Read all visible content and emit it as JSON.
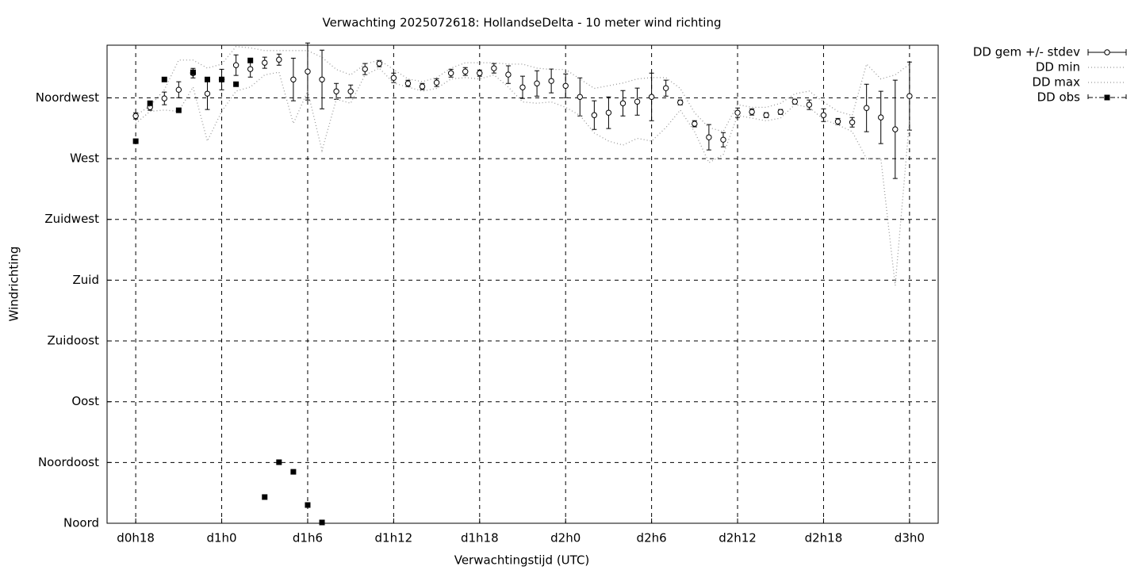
{
  "chart_data": {
    "type": "errorbar",
    "title": "Verwachting 2025072618: HollandseDelta - 10 meter wind richting",
    "x_label": "Verwachtingstijd (UTC)",
    "y_label": "Windrichting",
    "xlim": [
      16,
      74
    ],
    "xticks": [
      {
        "value": 18,
        "label": "d0h18"
      },
      {
        "value": 24,
        "label": "d1h0"
      },
      {
        "value": 30,
        "label": "d1h6"
      },
      {
        "value": 36,
        "label": "d1h12"
      },
      {
        "value": 42,
        "label": "d1h18"
      },
      {
        "value": 48,
        "label": "d2h0"
      },
      {
        "value": 54,
        "label": "d2h6"
      },
      {
        "value": 60,
        "label": "d2h12"
      },
      {
        "value": 66,
        "label": "d2h18"
      },
      {
        "value": 72,
        "label": "d3h0"
      }
    ],
    "ylim": [
      0,
      354
    ],
    "yticks": [
      {
        "value": 0,
        "label": "Noord"
      },
      {
        "value": 45,
        "label": "Noordoost"
      },
      {
        "value": 90,
        "label": "Oost"
      },
      {
        "value": 135,
        "label": "Zuidoost"
      },
      {
        "value": 180,
        "label": "Zuid"
      },
      {
        "value": 225,
        "label": "Zuidwest"
      },
      {
        "value": 270,
        "label": "West"
      },
      {
        "value": 315,
        "label": "Noordwest"
      }
    ],
    "grid": true,
    "legend": "outside-top-right",
    "x": [
      18,
      19,
      20,
      21,
      22,
      23,
      24,
      25,
      26,
      27,
      28,
      29,
      30,
      31,
      32,
      33,
      34,
      35,
      36,
      37,
      38,
      39,
      40,
      41,
      42,
      43,
      44,
      45,
      46,
      47,
      48,
      49,
      50,
      51,
      52,
      53,
      54,
      55,
      56,
      57,
      58,
      59,
      60,
      61,
      62,
      63,
      64,
      65,
      66,
      67,
      68,
      69,
      70,
      71,
      72
    ],
    "series": [
      {
        "name": "DD gem +/- stdev",
        "color": "#000000",
        "style": "errorbar",
        "values": [
          301.6,
          308.1,
          314.6,
          321.0,
          333.3,
          318.1,
          328.6,
          339.2,
          336.3,
          341.0,
          343.3,
          328.6,
          334.5,
          328.6,
          319.8,
          319.8,
          336.3,
          340.4,
          329.8,
          325.7,
          323.4,
          326.3,
          333.3,
          334.5,
          333.3,
          336.9,
          332.2,
          322.8,
          325.7,
          327.5,
          323.9,
          315.7,
          302.2,
          304.0,
          311.0,
          312.2,
          315.7,
          322.2,
          311.6,
          295.8,
          285.8,
          284.0,
          304.0,
          304.6,
          302.2,
          304.6,
          312.2,
          309.9,
          302.2,
          297.5,
          296.9,
          307.5,
          300.5,
          291.7,
          316.3
        ],
        "errors": [
          2.3,
          2.3,
          4.7,
          5.9,
          3.5,
          11.7,
          7.6,
          7.6,
          5.9,
          4.1,
          4.1,
          15.8,
          21.1,
          21.7,
          5.9,
          4.7,
          4.1,
          2.3,
          3.5,
          2.3,
          2.3,
          2.9,
          2.9,
          2.9,
          2.3,
          3.5,
          6.5,
          8.2,
          9.4,
          8.8,
          8.8,
          14.1,
          10.6,
          11.7,
          9.4,
          10.0,
          17.6,
          5.9,
          1.8,
          2.3,
          9.4,
          5.3,
          3.5,
          2.3,
          1.8,
          1.8,
          1.8,
          3.5,
          4.7,
          2.3,
          3.5,
          17.6,
          19.4,
          36.4,
          25.2
        ]
      },
      {
        "name": "DD min",
        "color": "#999999",
        "style": "dotted",
        "values": [
          296,
          305,
          306,
          305,
          323,
          283,
          305,
          320,
          323,
          332,
          334,
          296,
          320,
          276,
          314,
          311,
          332,
          337,
          326,
          323,
          320,
          322,
          329,
          330,
          329,
          332,
          323,
          312,
          311,
          312,
          308,
          302,
          289,
          283,
          280,
          285,
          283,
          293,
          306,
          290,
          267,
          273,
          302,
          300,
          298,
          300,
          310,
          308,
          299,
          295,
          290,
          270,
          270,
          176,
          299
        ]
      },
      {
        "name": "DD max",
        "color": "#999999",
        "style": "dotted",
        "values": [
          302,
          309,
          321,
          343,
          343,
          337,
          340,
          353,
          352,
          350,
          350,
          350,
          350,
          345,
          336,
          332,
          340,
          343,
          336,
          329,
          327,
          330,
          337,
          341,
          341,
          341,
          340,
          340,
          337,
          336,
          336,
          329,
          322,
          324,
          326,
          329,
          330,
          330,
          322,
          304,
          293,
          290,
          310,
          308,
          308,
          311,
          318,
          320,
          312,
          305,
          302,
          340,
          329,
          332,
          340
        ]
      },
      {
        "name": "DD obs",
        "color": "#000000",
        "style": "points",
        "x": [
          18,
          19,
          20,
          21,
          22,
          23,
          24,
          25,
          26,
          27,
          28,
          29,
          30,
          31
        ],
        "values": [
          282.9,
          311.0,
          328.6,
          305.8,
          333.9,
          328.6,
          328.6,
          325.1,
          342.7,
          19.4,
          45.2,
          38.1,
          13.5,
          0.6
        ]
      }
    ]
  }
}
